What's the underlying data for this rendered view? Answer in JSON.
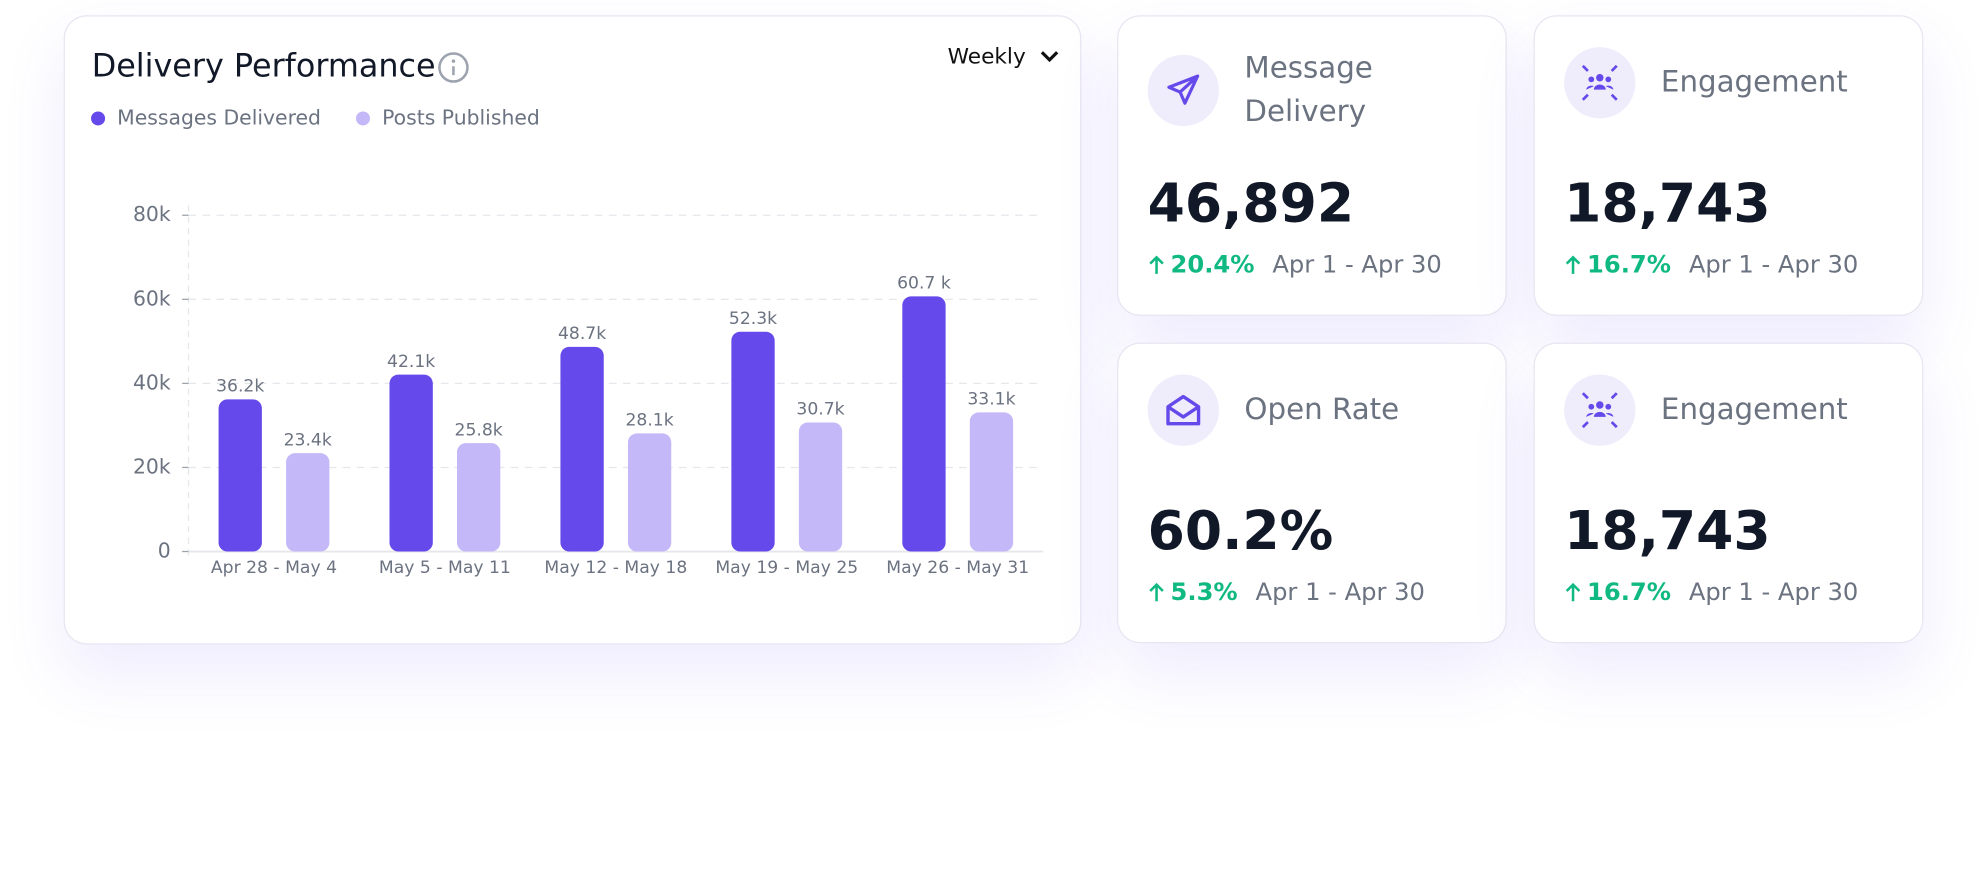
{
  "chart_data": {
    "type": "bar",
    "title": "Delivery Performance",
    "period": "Weekly",
    "categories": [
      "Apr 28 - May 4",
      "May 5 - May 11",
      "May 12 - May 18",
      "May 19 - May 25",
      "May 26 - May 31"
    ],
    "series": [
      {
        "name": "Messages Delivered",
        "color": "#6549ea",
        "values": [
          36200,
          42100,
          48700,
          52300,
          60700
        ],
        "value_labels": [
          "36.2k",
          "42.1k",
          "48.7k",
          "52.3k",
          "60.7 k"
        ]
      },
      {
        "name": "Posts Published",
        "color": "#c4b8f8",
        "values": [
          23400,
          25800,
          28100,
          30700,
          33100
        ],
        "value_labels": [
          "23.4k",
          "25.8k",
          "28.1k",
          "30.7k",
          "33.1k"
        ]
      }
    ],
    "ylim": [
      0,
      80000
    ],
    "yticks": [
      0,
      {
        "value": 20000,
        "label": "20k"
      },
      {
        "value": 40000,
        "label": "40k"
      },
      {
        "value": 60000,
        "label": "60k"
      },
      {
        "value": 80000,
        "label": "80k"
      }
    ],
    "grid": true
  },
  "cards": [
    {
      "title": "Message Delivery",
      "value": "46,892",
      "change": "20.4%",
      "period": "Apr 1 - Apr 30"
    },
    {
      "title": "Engagement",
      "value": "18,743",
      "change": "16.7%",
      "period": "Apr 1 - Apr 30"
    },
    {
      "title": "Open Rate",
      "value": "60.2%",
      "change": "5.3%",
      "period": "Apr 1 - Apr 30"
    },
    {
      "title": "Engagement",
      "value": "18,743",
      "change": "16.7%",
      "period": "Apr 1 - Apr 30"
    }
  ]
}
